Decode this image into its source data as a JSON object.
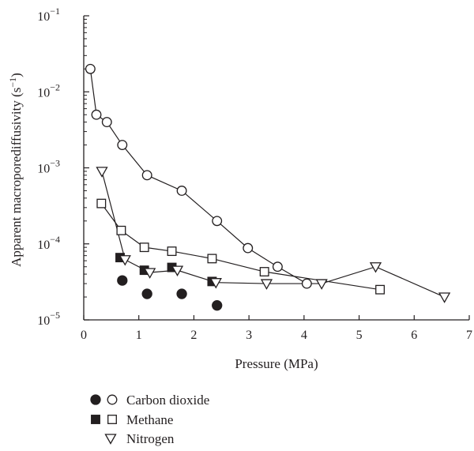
{
  "chart_data": {
    "type": "scatter",
    "xlabel": "Pressure (MPa)",
    "ylabel_main": "Apparent macroporediffusivity (s",
    "ylabel_exp": "−1",
    "ylabel_close": ")",
    "xlim": [
      0,
      7
    ],
    "ylim": [
      1e-05,
      0.1
    ],
    "yscale": "log",
    "grid": false,
    "x_ticks": [
      0,
      1,
      2,
      3,
      4,
      5,
      6,
      7
    ],
    "y_ticks": [
      {
        "value": 1e-05,
        "base": "10",
        "exp": "−5"
      },
      {
        "value": 0.0001,
        "base": "10",
        "exp": "−4"
      },
      {
        "value": 0.001,
        "base": "10",
        "exp": "−3"
      },
      {
        "value": 0.01,
        "base": "10",
        "exp": "−2"
      },
      {
        "value": 0.1,
        "base": "10",
        "exp": "−1"
      }
    ],
    "legend_placement": "bottom-left",
    "legend": [
      {
        "label": "Carbon dioxide",
        "markers": [
          "circle-filled",
          "circle-open"
        ]
      },
      {
        "label": "Methane",
        "markers": [
          "square-filled",
          "square-open"
        ]
      },
      {
        "label": "Nitrogen",
        "markers": [
          "triangle-open"
        ]
      }
    ],
    "series": [
      {
        "gas": "carbon-dioxide",
        "marker": "circle-open",
        "connected": true,
        "x": [
          0.12,
          0.23,
          0.42,
          0.7,
          1.15,
          1.78,
          2.42,
          2.98,
          3.52,
          4.05
        ],
        "y": [
          0.02,
          0.005,
          0.004,
          0.002,
          0.0008,
          0.0005,
          0.0002,
          8.8e-05,
          5e-05,
          3e-05
        ]
      },
      {
        "gas": "carbon-dioxide",
        "marker": "circle-filled",
        "connected": false,
        "x": [
          0.7,
          1.15,
          1.78,
          2.42
        ],
        "y": [
          3.3e-05,
          2.2e-05,
          2.2e-05,
          1.55e-05
        ]
      },
      {
        "gas": "methane",
        "marker": "square-open",
        "connected": true,
        "x": [
          0.32,
          0.68,
          1.1,
          1.6,
          2.33,
          3.28,
          5.38
        ],
        "y": [
          0.00034,
          0.00015,
          9e-05,
          8e-05,
          6.4e-05,
          4.3e-05,
          2.5e-05
        ]
      },
      {
        "gas": "methane",
        "marker": "square-filled",
        "connected": false,
        "x": [
          0.66,
          1.1,
          1.6,
          2.33
        ],
        "y": [
          6.6e-05,
          4.5e-05,
          4.9e-05,
          3.2e-05
        ]
      },
      {
        "gas": "nitrogen",
        "marker": "triangle-open",
        "connected": true,
        "x": [
          0.33,
          0.75,
          1.2,
          1.7,
          2.4,
          3.32,
          4.32,
          5.3,
          6.55
        ],
        "y": [
          0.0009,
          6.2e-05,
          4.2e-05,
          4.5e-05,
          3.1e-05,
          3e-05,
          3e-05,
          5e-05,
          2e-05
        ]
      }
    ]
  }
}
